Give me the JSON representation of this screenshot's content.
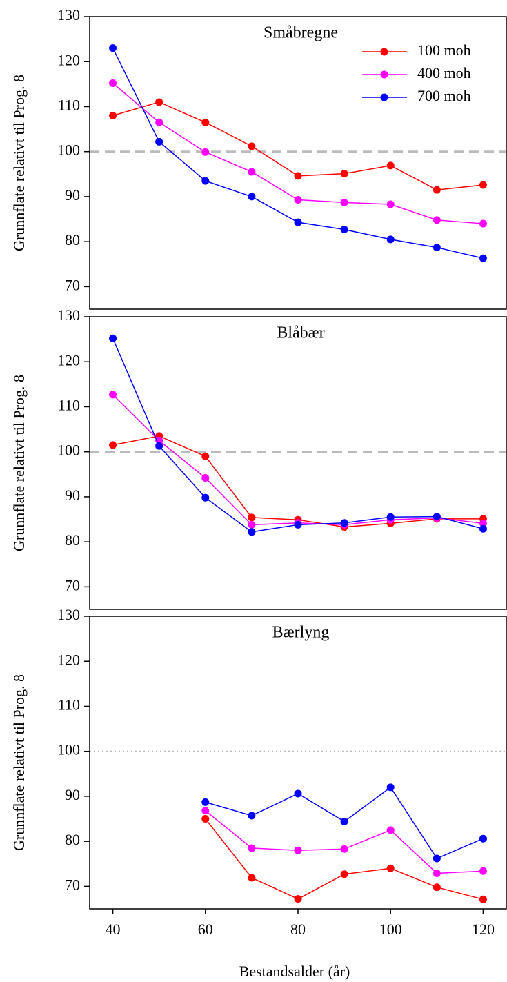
{
  "chart_data": [
    {
      "type": "line",
      "title": "Småbregne",
      "ylabel": "Grunnflate relativt til Prog. 8",
      "x": [
        40,
        50,
        60,
        70,
        80,
        90,
        100,
        110,
        120
      ],
      "series": [
        {
          "name": "100 moh",
          "color": "#ff0000",
          "values": [
            108,
            111,
            106.5,
            101.2,
            94.6,
            95.1,
            96.9,
            91.5,
            92.6
          ]
        },
        {
          "name": "400 moh",
          "color": "#ff00ff",
          "values": [
            115.2,
            106.5,
            99.9,
            95.5,
            89.3,
            88.7,
            88.3,
            84.8,
            84
          ]
        },
        {
          "name": "700 moh",
          "color": "#0000ff",
          "values": [
            123,
            102.2,
            93.5,
            90,
            84.3,
            82.7,
            80.5,
            78.7,
            76.3
          ]
        }
      ],
      "xlim": [
        35,
        125
      ],
      "ylim": [
        65,
        130
      ],
      "yticks": [
        70,
        80,
        90,
        100,
        110,
        120,
        130
      ],
      "reference_line": {
        "value": 100,
        "style": "dashed"
      },
      "legend": "upper right"
    },
    {
      "type": "line",
      "title": "Blåbær",
      "ylabel": "Grunnflate relativt til Prog. 8",
      "x": [
        40,
        50,
        60,
        70,
        80,
        90,
        100,
        110,
        120
      ],
      "series": [
        {
          "color": "#ff0000",
          "values": [
            101.5,
            103.5,
            99,
            85.4,
            84.9,
            83.3,
            84.1,
            85.1,
            85.1
          ]
        },
        {
          "color": "#ff00ff",
          "values": [
            112.7,
            102.5,
            94.2,
            83.8,
            84.2,
            83.8,
            84.9,
            85.3,
            84.1
          ]
        },
        {
          "color": "#0000ff",
          "values": [
            125.2,
            101.3,
            89.8,
            82.2,
            83.8,
            84.2,
            85.5,
            85.6,
            82.9
          ]
        }
      ],
      "xlim": [
        35,
        125
      ],
      "ylim": [
        65,
        130
      ],
      "yticks": [
        70,
        80,
        90,
        100,
        110,
        120,
        130
      ],
      "reference_line": {
        "value": 100,
        "style": "dashed"
      }
    },
    {
      "type": "line",
      "title": "Bærlyng",
      "ylabel": "Grunnflate relativt til Prog. 8",
      "xlabel": "Bestandsalder (år)",
      "x": [
        60,
        70,
        80,
        90,
        100,
        110,
        120
      ],
      "series": [
        {
          "color": "#ff0000",
          "values": [
            85,
            71.9,
            67.2,
            72.7,
            74,
            69.8,
            67.1
          ]
        },
        {
          "color": "#ff00ff",
          "values": [
            86.8,
            78.5,
            78,
            78.3,
            82.5,
            72.9,
            73.4
          ]
        },
        {
          "color": "#0000ff",
          "values": [
            88.7,
            85.7,
            90.6,
            84.4,
            92,
            76.2,
            80.6
          ]
        }
      ],
      "xlim": [
        35,
        125
      ],
      "ylim": [
        65,
        130
      ],
      "yticks": [
        70,
        80,
        90,
        100,
        110,
        120,
        130
      ],
      "xticks": [
        40,
        60,
        80,
        100,
        120
      ],
      "reference_line": {
        "value": 100,
        "style": "dotted"
      }
    }
  ]
}
